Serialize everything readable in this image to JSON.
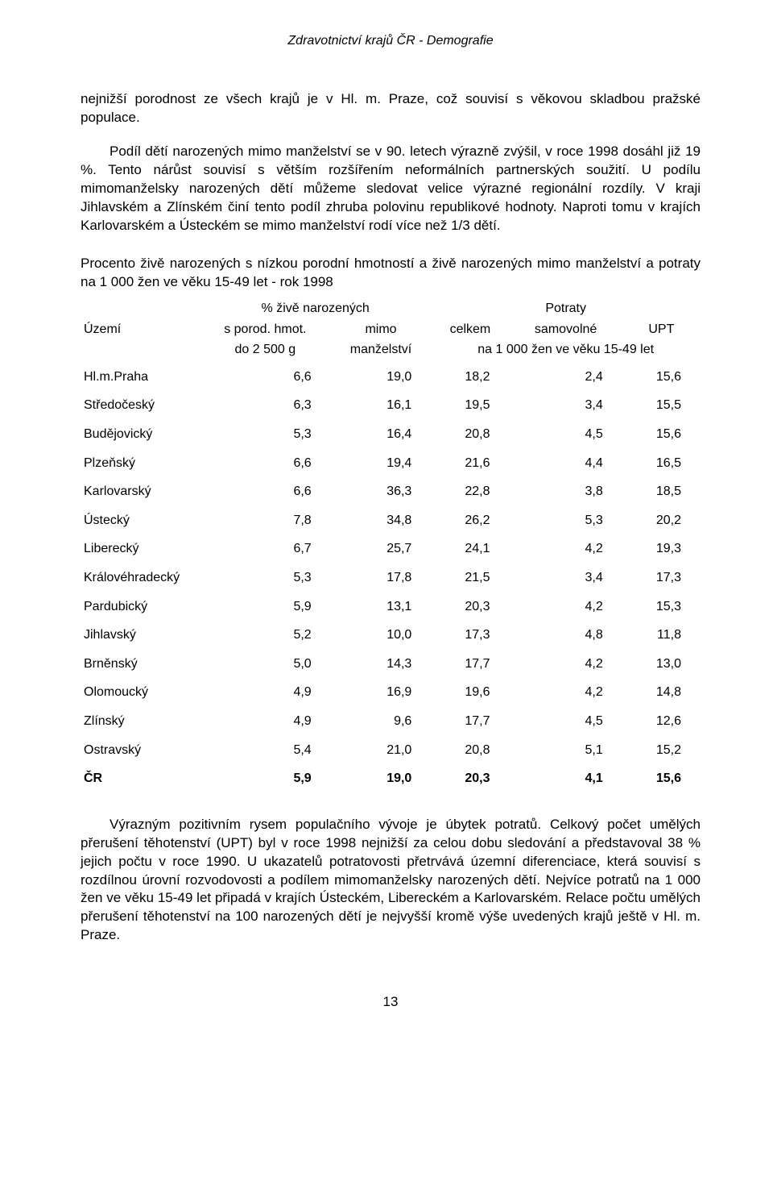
{
  "header": "Zdravotnictví krajů ČR - Demografie",
  "paragraph1": "nejnižší porodnost ze všech krajů je v Hl. m. Praze, což souvisí s věkovou skladbou pražské populace.",
  "paragraph2": "Podíl dětí narozených mimo manželství se v 90. letech výrazně zvýšil, v roce 1998 dosáhl již 19 %. Tento nárůst souvisí s větším rozšířením neformálních partnerských soužití. U podílu mimomanželsky narozených dětí můžeme sledovat velice výrazné regionální rozdíly. V kraji Jihlavském a Zlínském činí tento podíl zhruba polovinu republikové hodnoty. Naproti tomu v krajích Karlovarském a Ústeckém se mimo manželství rodí více než 1/3 dětí.",
  "table_caption": "Procento živě narozených s nízkou porodní hmotností a živě narozených mimo manželství a potraty na 1 000 žen ve věku 15-49 let - rok 1998",
  "col_headers": {
    "group1": "% živě narozených",
    "group2": "Potraty",
    "uzemi": "Území",
    "c1a": "s porod. hmot.",
    "c1b": "do 2 500 g",
    "c2a": "mimo",
    "c2b": "manželství",
    "c3": "celkem",
    "c4": "samovolné",
    "c5": "UPT",
    "sub2": "na 1 000 žen ve věku 15-49 let"
  },
  "rows": [
    {
      "label": "Hl.m.Praha",
      "v": [
        "6,6",
        "19,0",
        "18,2",
        "2,4",
        "15,6"
      ]
    },
    {
      "label": "Středočeský",
      "v": [
        "6,3",
        "16,1",
        "19,5",
        "3,4",
        "15,5"
      ]
    },
    {
      "label": "Budějovický",
      "v": [
        "5,3",
        "16,4",
        "20,8",
        "4,5",
        "15,6"
      ]
    },
    {
      "label": "Plzeňský",
      "v": [
        "6,6",
        "19,4",
        "21,6",
        "4,4",
        "16,5"
      ]
    },
    {
      "label": "Karlovarský",
      "v": [
        "6,6",
        "36,3",
        "22,8",
        "3,8",
        "18,5"
      ]
    },
    {
      "label": "Ústecký",
      "v": [
        "7,8",
        "34,8",
        "26,2",
        "5,3",
        "20,2"
      ]
    },
    {
      "label": "Liberecký",
      "v": [
        "6,7",
        "25,7",
        "24,1",
        "4,2",
        "19,3"
      ]
    },
    {
      "label": "Královéhradecký",
      "v": [
        "5,3",
        "17,8",
        "21,5",
        "3,4",
        "17,3"
      ]
    },
    {
      "label": "Pardubický",
      "v": [
        "5,9",
        "13,1",
        "20,3",
        "4,2",
        "15,3"
      ]
    },
    {
      "label": "Jihlavský",
      "v": [
        "5,2",
        "10,0",
        "17,3",
        "4,8",
        "11,8"
      ]
    },
    {
      "label": "Brněnský",
      "v": [
        "5,0",
        "14,3",
        "17,7",
        "4,2",
        "13,0"
      ]
    },
    {
      "label": "Olomoucký",
      "v": [
        "4,9",
        "16,9",
        "19,6",
        "4,2",
        "14,8"
      ]
    },
    {
      "label": "Zlínský",
      "v": [
        "4,9",
        "9,6",
        "17,7",
        "4,5",
        "12,6"
      ]
    },
    {
      "label": "Ostravský",
      "v": [
        "5,4",
        "21,0",
        "20,8",
        "5,1",
        "15,2"
      ]
    },
    {
      "label": "ČR",
      "v": [
        "5,9",
        "19,0",
        "20,3",
        "4,1",
        "15,6"
      ],
      "bold": true
    }
  ],
  "paragraph3": "Výrazným pozitivním rysem populačního vývoje je úbytek potratů. Celkový počet umělých přerušení těhotenství (UPT) byl v roce 1998 nejnižší za celou dobu sledování a představoval 38 % jejich počtu v roce 1990. U ukazatelů potratovosti přetrvává územní diferenciace, která souvisí s rozdílnou úrovní rozvodovosti a podílem mimomanželsky narozených dětí. Nejvíce potratů na 1 000 žen ve věku 15-49 let připadá v krajích Ústeckém, Libereckém a Karlovarském. Relace počtu umělých přerušení těhotenství na 100 narozených dětí je nejvyšší kromě výše uvedených krajů ještě v Hl. m. Praze.",
  "page_number": "13"
}
